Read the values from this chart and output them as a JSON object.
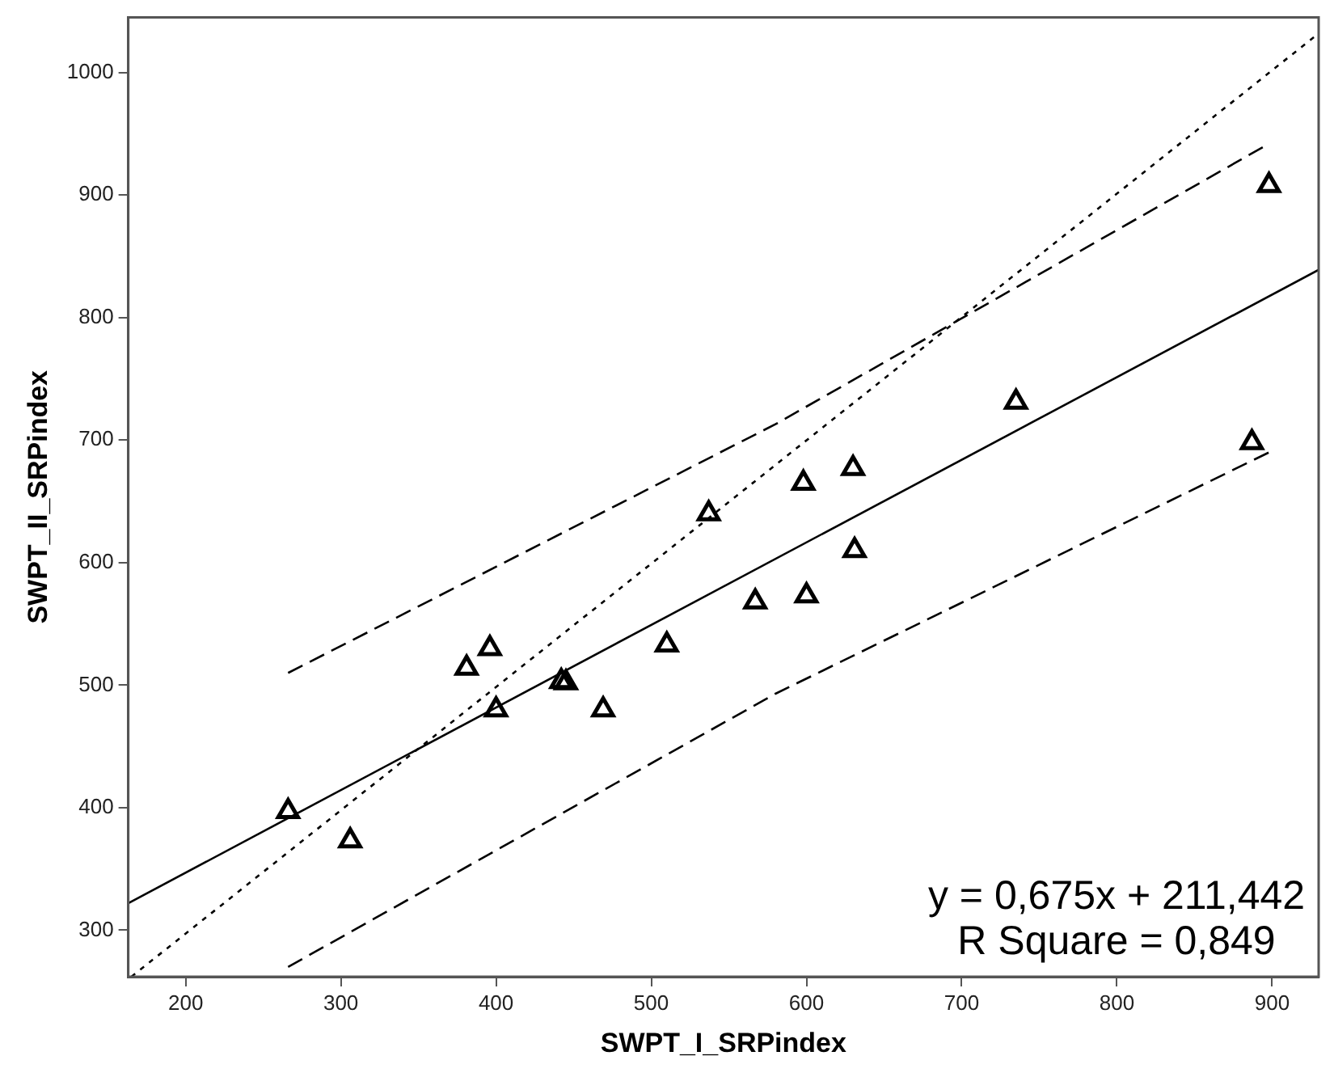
{
  "chart_data": {
    "type": "scatter",
    "xlabel": "SWPT_I_SRPindex",
    "ylabel": "SWPT_II_SRPindex",
    "xlim": [
      163,
      930
    ],
    "ylim": [
      262,
      1045
    ],
    "xticks": [
      200,
      300,
      400,
      500,
      600,
      700,
      800,
      900
    ],
    "yticks": [
      300,
      400,
      500,
      600,
      700,
      800,
      900,
      1000
    ],
    "grid": false,
    "legend": false,
    "marker": "triangle",
    "series": [
      {
        "type": "scatter",
        "color": "#000000",
        "x": [
          266,
          306,
          381,
          396,
          400,
          442,
          445,
          469,
          510,
          537,
          567,
          598,
          600,
          630,
          631,
          735,
          887,
          898
        ],
        "values": [
          397,
          373,
          514,
          530,
          480,
          503,
          502,
          480,
          533,
          640,
          568,
          665,
          573,
          677,
          610,
          731,
          698,
          908
        ]
      },
      {
        "type": "line",
        "color": "#000000",
        "marker": "none",
        "line_style": "solid",
        "x": [
          163,
          930
        ],
        "values": [
          322,
          839
        ]
      },
      {
        "type": "line",
        "color": "#000000",
        "marker": "none",
        "line_style": "dotted",
        "x": [
          165,
          930
        ],
        "values": [
          262,
          1032
        ]
      },
      {
        "type": "line",
        "color": "#000000",
        "marker": "none",
        "line_style": "dashed",
        "x": [
          266,
          580,
          898
        ],
        "values": [
          510,
          713,
          942
        ]
      },
      {
        "type": "line",
        "color": "#000000",
        "marker": "none",
        "line_style": "dashed",
        "x": [
          266,
          580,
          898
        ],
        "values": [
          270,
          493,
          690
        ]
      }
    ],
    "annotations": [
      "y = 0,675x + 211,442",
      "R Square = 0,849"
    ]
  }
}
